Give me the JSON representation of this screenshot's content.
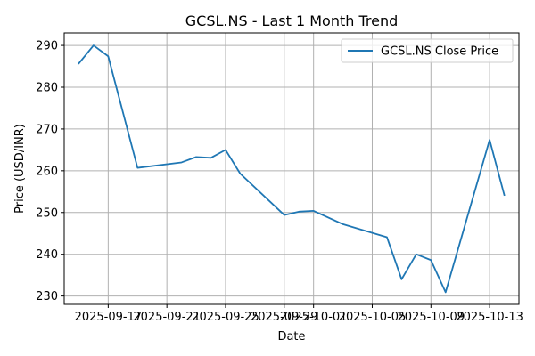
{
  "chart_data": {
    "type": "line",
    "title": "GCSL.NS - Last 1 Month Trend",
    "xlabel": "Date",
    "ylabel": "Price (USD/INR)",
    "x": [
      "2025-09-15",
      "2025-09-16",
      "2025-09-17",
      "2025-09-19",
      "2025-09-22",
      "2025-09-23",
      "2025-09-24",
      "2025-09-25",
      "2025-09-26",
      "2025-09-29",
      "2025-09-30",
      "2025-10-01",
      "2025-10-03",
      "2025-10-06",
      "2025-10-07",
      "2025-10-08",
      "2025-10-09",
      "2025-10-10",
      "2025-10-13",
      "2025-10-14"
    ],
    "series": [
      {
        "name": "GCSL.NS Close Price",
        "color": "#1f77b4",
        "values": [
          285.7,
          290.0,
          287.4,
          260.7,
          262.0,
          263.3,
          263.1,
          265.0,
          259.3,
          249.4,
          250.2,
          250.4,
          247.2,
          244.1,
          234.0,
          240.0,
          238.6,
          230.9,
          267.4,
          254.2
        ]
      }
    ],
    "xlim": [
      "2025-09-14",
      "2025-10-15"
    ],
    "ylim": [
      228,
      293
    ],
    "x_ticks": [
      "2025-09-17",
      "2025-09-21",
      "2025-09-25",
      "2025-09-29",
      "2025-10-01",
      "2025-10-05",
      "2025-10-09",
      "2025-10-13"
    ],
    "y_ticks": [
      230,
      240,
      250,
      260,
      270,
      280,
      290
    ],
    "grid": true,
    "legend_position": "top-right"
  }
}
